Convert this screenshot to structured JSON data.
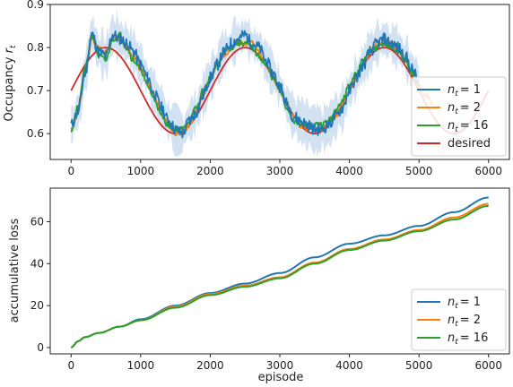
{
  "chart_data": [
    {
      "type": "line",
      "ylabel_main": "Occupancy ",
      "ylabel_var": "r",
      "ylabel_sub": "t",
      "xlabel": "",
      "xlim": [
        -300,
        6300
      ],
      "ylim": [
        0.54,
        0.9
      ],
      "xticks": [
        0,
        1000,
        2000,
        3000,
        4000,
        5000,
        6000
      ],
      "yticks": [
        0.6,
        0.7,
        0.8,
        0.9
      ],
      "ytick_labels": [
        "0.6",
        "0.7",
        "0.8",
        "0.9"
      ],
      "legend_position": "lower-right",
      "grid": false,
      "series": [
        {
          "name_var": "n",
          "name_sub": "t",
          "name_val": "= 1",
          "color": "#1f77b4",
          "x": [
            0,
            100,
            200,
            300,
            400,
            500,
            600,
            700,
            800,
            900,
            1000,
            1100,
            1200,
            1300,
            1400,
            1500,
            1600,
            1700,
            1800,
            1900,
            2000,
            2100,
            2200,
            2300,
            2400,
            2500,
            2600,
            2700,
            2800,
            2900,
            3000,
            3100,
            3200,
            3300,
            3400,
            3500,
            3600,
            3700,
            3800,
            3900,
            4000,
            4100,
            4200,
            4300,
            4400,
            4500,
            4600,
            4700,
            4800,
            4900,
            5000
          ],
          "y": [
            0.62,
            0.65,
            0.74,
            0.83,
            0.79,
            0.78,
            0.83,
            0.82,
            0.81,
            0.79,
            0.76,
            0.73,
            0.69,
            0.66,
            0.63,
            0.61,
            0.6,
            0.63,
            0.65,
            0.69,
            0.73,
            0.76,
            0.79,
            0.81,
            0.82,
            0.83,
            0.81,
            0.8,
            0.77,
            0.74,
            0.71,
            0.67,
            0.64,
            0.63,
            0.62,
            0.61,
            0.61,
            0.62,
            0.64,
            0.66,
            0.7,
            0.73,
            0.76,
            0.79,
            0.81,
            0.82,
            0.81,
            0.8,
            0.78,
            0.75,
            0.72
          ]
        },
        {
          "name_var": "n",
          "name_sub": "t",
          "name_val": "= 2",
          "color": "#ff7f0e",
          "x": [
            0,
            100,
            200,
            300,
            400,
            500,
            600,
            700,
            800,
            900,
            1000,
            1100,
            1200,
            1300,
            1400,
            1500,
            1600,
            1700,
            1800,
            1900,
            2000,
            2100,
            2200,
            2300,
            2400,
            2500,
            2600,
            2700,
            2800,
            2900,
            3000,
            3100,
            3200,
            3300,
            3400,
            3500,
            3600,
            3700,
            3800,
            3900,
            4000,
            4100,
            4200,
            4300,
            4400,
            4500,
            4600,
            4700,
            4800,
            4900,
            5000,
            5100,
            5200
          ],
          "y": [
            0.61,
            0.65,
            0.74,
            0.82,
            0.8,
            0.79,
            0.82,
            0.82,
            0.8,
            0.78,
            0.75,
            0.72,
            0.68,
            0.65,
            0.62,
            0.6,
            0.6,
            0.62,
            0.65,
            0.69,
            0.73,
            0.76,
            0.78,
            0.8,
            0.81,
            0.81,
            0.81,
            0.79,
            0.76,
            0.73,
            0.7,
            0.67,
            0.64,
            0.62,
            0.61,
            0.61,
            0.61,
            0.62,
            0.64,
            0.67,
            0.7,
            0.73,
            0.76,
            0.79,
            0.81,
            0.81,
            0.81,
            0.79,
            0.77,
            0.74,
            0.71,
            0.69,
            0.67
          ]
        },
        {
          "name_var": "n",
          "name_sub": "t",
          "name_val": "= 16",
          "color": "#2ca02c",
          "x": [
            0,
            100,
            200,
            300,
            400,
            500,
            600,
            700,
            800,
            900,
            1000,
            1100,
            1200,
            1300,
            1400,
            1500,
            1600,
            1700,
            1800,
            1900,
            2000,
            2100,
            2200,
            2300,
            2400,
            2500,
            2600,
            2700,
            2800,
            2900,
            3000,
            3100,
            3200,
            3300,
            3400,
            3500,
            3600,
            3700,
            3800,
            3900,
            4000,
            4100,
            4200,
            4300,
            4400,
            4500,
            4600,
            4700,
            4800,
            4900,
            5000
          ],
          "y": [
            0.61,
            0.66,
            0.75,
            0.83,
            0.78,
            0.77,
            0.82,
            0.83,
            0.8,
            0.77,
            0.75,
            0.71,
            0.68,
            0.64,
            0.62,
            0.61,
            0.61,
            0.63,
            0.66,
            0.7,
            0.73,
            0.76,
            0.79,
            0.8,
            0.81,
            0.81,
            0.8,
            0.78,
            0.76,
            0.73,
            0.7,
            0.66,
            0.63,
            0.62,
            0.62,
            0.62,
            0.62,
            0.63,
            0.65,
            0.68,
            0.71,
            0.74,
            0.77,
            0.79,
            0.8,
            0.81,
            0.8,
            0.79,
            0.77,
            0.74,
            0.71
          ]
        },
        {
          "name": "desired",
          "color": "#d62728",
          "function": "0.7 + 0.1*sin(2*pi*x/2000)",
          "x_range": [
            0,
            6000
          ]
        }
      ]
    },
    {
      "type": "line",
      "ylabel": "accumulative loss",
      "xlabel": "episode",
      "xlim": [
        -300,
        6300
      ],
      "ylim": [
        -3,
        76
      ],
      "xticks": [
        0,
        1000,
        2000,
        3000,
        4000,
        5000,
        6000
      ],
      "yticks": [
        0,
        20,
        40,
        60
      ],
      "ytick_labels": [
        "0",
        "20",
        "40",
        "60"
      ],
      "legend_position": "lower-right",
      "grid": false,
      "series": [
        {
          "name_var": "n",
          "name_sub": "t",
          "name_val": "= 1",
          "color": "#1f77b4",
          "x": [
            0,
            100,
            200,
            400,
            700,
            1000,
            1500,
            2000,
            2500,
            3000,
            3500,
            4000,
            4500,
            5000,
            5500,
            6000
          ],
          "y": [
            0,
            3,
            5,
            7,
            10,
            13.5,
            20,
            26,
            30.5,
            35.5,
            43,
            49.5,
            53.5,
            58,
            64.5,
            71.5
          ]
        },
        {
          "name_var": "n",
          "name_sub": "t",
          "name_val": "= 2",
          "color": "#ff7f0e",
          "x": [
            0,
            100,
            200,
            400,
            700,
            1000,
            1500,
            2000,
            2500,
            3000,
            3500,
            4000,
            4500,
            5000,
            5500,
            6000
          ],
          "y": [
            0,
            3,
            5,
            7,
            10,
            13,
            19.5,
            25.5,
            29.5,
            33.5,
            40.5,
            47,
            51.5,
            56,
            62,
            68.5
          ]
        },
        {
          "name_var": "n",
          "name_sub": "t",
          "name_val": "= 16",
          "color": "#2ca02c",
          "x": [
            0,
            100,
            200,
            400,
            700,
            1000,
            1500,
            2000,
            2500,
            3000,
            3500,
            4000,
            4500,
            5000,
            5500,
            6000
          ],
          "y": [
            0,
            3,
            5,
            7,
            10,
            13,
            19,
            25,
            29,
            33,
            40,
            46.5,
            51,
            55.5,
            61,
            67.5
          ]
        }
      ]
    }
  ],
  "ui": {
    "top_xtick_labels": [
      "0",
      "1000",
      "2000",
      "3000",
      "4000",
      "5000",
      "6000"
    ],
    "bottom_xtick_labels": [
      "0",
      "1000",
      "2000",
      "3000",
      "4000",
      "5000",
      "6000"
    ]
  }
}
